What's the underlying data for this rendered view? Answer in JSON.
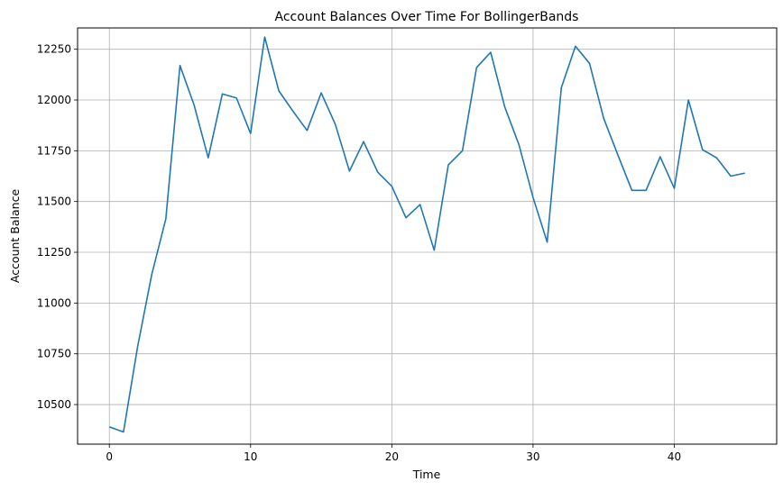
{
  "chart_data": {
    "type": "line",
    "title": "Account Balances Over Time For BollingerBands",
    "xlabel": "Time",
    "ylabel": "Account Balance",
    "xlim": [
      -2.25,
      47.25
    ],
    "ylim": [
      10305,
      12355
    ],
    "xticks": [
      0,
      10,
      20,
      30,
      40
    ],
    "yticks": [
      10500,
      10750,
      11000,
      11250,
      11500,
      11750,
      12000,
      12250
    ],
    "grid": true,
    "series": [
      {
        "color": "#1f77b4",
        "x": [
          0,
          1,
          2,
          3,
          4,
          5,
          6,
          7,
          8,
          9,
          10,
          11,
          12,
          13,
          14,
          15,
          16,
          17,
          18,
          19,
          20,
          21,
          22,
          23,
          24,
          25,
          26,
          27,
          28,
          29,
          30,
          31,
          32,
          33,
          34,
          35,
          36,
          37,
          38,
          39,
          40,
          41,
          42,
          43,
          44,
          45
        ],
        "values": [
          10390,
          10365,
          10785,
          11140,
          11415,
          12170,
          11975,
          11715,
          12030,
          12010,
          11835,
          12310,
          12045,
          11945,
          11850,
          12035,
          11880,
          11650,
          11795,
          11645,
          11575,
          11420,
          11485,
          11260,
          11680,
          11750,
          12160,
          12235,
          11965,
          11780,
          11520,
          11300,
          12060,
          12265,
          12180,
          11910,
          11730,
          11555,
          11555,
          11720,
          11565,
          12000,
          11755,
          11715,
          11625,
          11640
        ]
      }
    ]
  }
}
